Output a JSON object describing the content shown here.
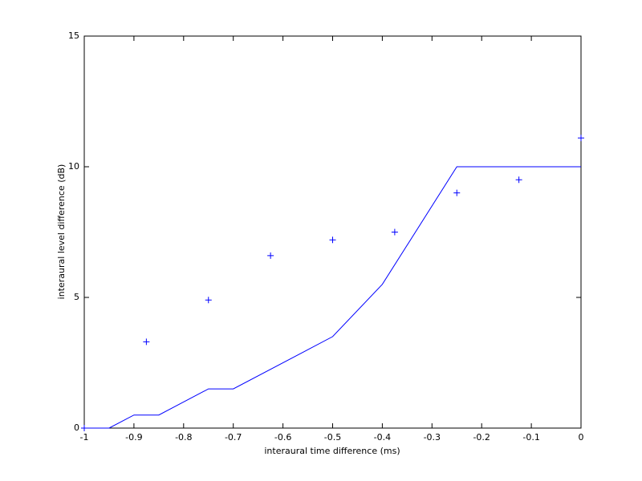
{
  "chart_data": {
    "type": "line",
    "xlabel": "interaural time difference (ms)",
    "ylabel": "interaural level difference (dB)",
    "xlim": [
      -1,
      0
    ],
    "ylim": [
      0,
      15
    ],
    "xticks": [
      -1,
      -0.9,
      -0.8,
      -0.7,
      -0.6,
      -0.5,
      -0.4,
      -0.3,
      -0.2,
      -0.1,
      0
    ],
    "yticks": [
      0,
      5,
      10,
      15
    ],
    "series": [
      {
        "color": "#0000ff",
        "marker": "none",
        "x": [
          -1,
          -0.95,
          -0.9,
          -0.85,
          -0.75,
          -0.7,
          -0.5,
          -0.4,
          -0.25,
          0
        ],
        "values": [
          0,
          0,
          0.5,
          0.5,
          1.5,
          1.5,
          3.5,
          5.5,
          10,
          10
        ]
      },
      {
        "color": "#0000ff",
        "marker": "+",
        "x": [
          -1,
          -0.875,
          -0.75,
          -0.625,
          -0.5,
          -0.375,
          -0.25,
          -0.125,
          0
        ],
        "values": [
          0,
          3.3,
          4.9,
          6.6,
          7.2,
          7.5,
          9,
          9.5,
          11.1
        ]
      }
    ]
  }
}
